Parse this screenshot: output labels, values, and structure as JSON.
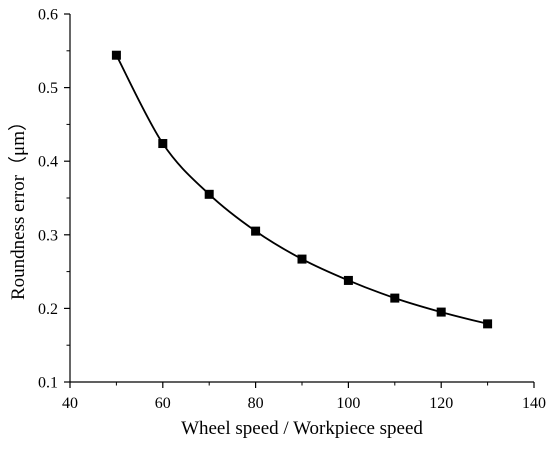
{
  "chart_data": {
    "type": "line",
    "xlabel": "Wheel speed / Workpiece speed",
    "ylabel": "Roundness error（μm）",
    "xlim": [
      40,
      140
    ],
    "ylim": [
      0.1,
      0.6
    ],
    "x_ticks": [
      "40",
      "60",
      "80",
      "100",
      "120",
      "140"
    ],
    "y_ticks": [
      "0.1",
      "0.2",
      "0.3",
      "0.4",
      "0.5",
      "0.6"
    ],
    "grid": false,
    "legend": "none",
    "marker": "square",
    "series": [
      {
        "x": [
          50,
          60,
          70,
          80,
          90,
          100,
          110,
          120,
          130
        ],
        "values": [
          0.544,
          0.424,
          0.355,
          0.305,
          0.267,
          0.238,
          0.214,
          0.195,
          0.179
        ]
      }
    ],
    "colors": {
      "line": "#000000",
      "marker": "#000000",
      "axis": "#000000"
    }
  }
}
